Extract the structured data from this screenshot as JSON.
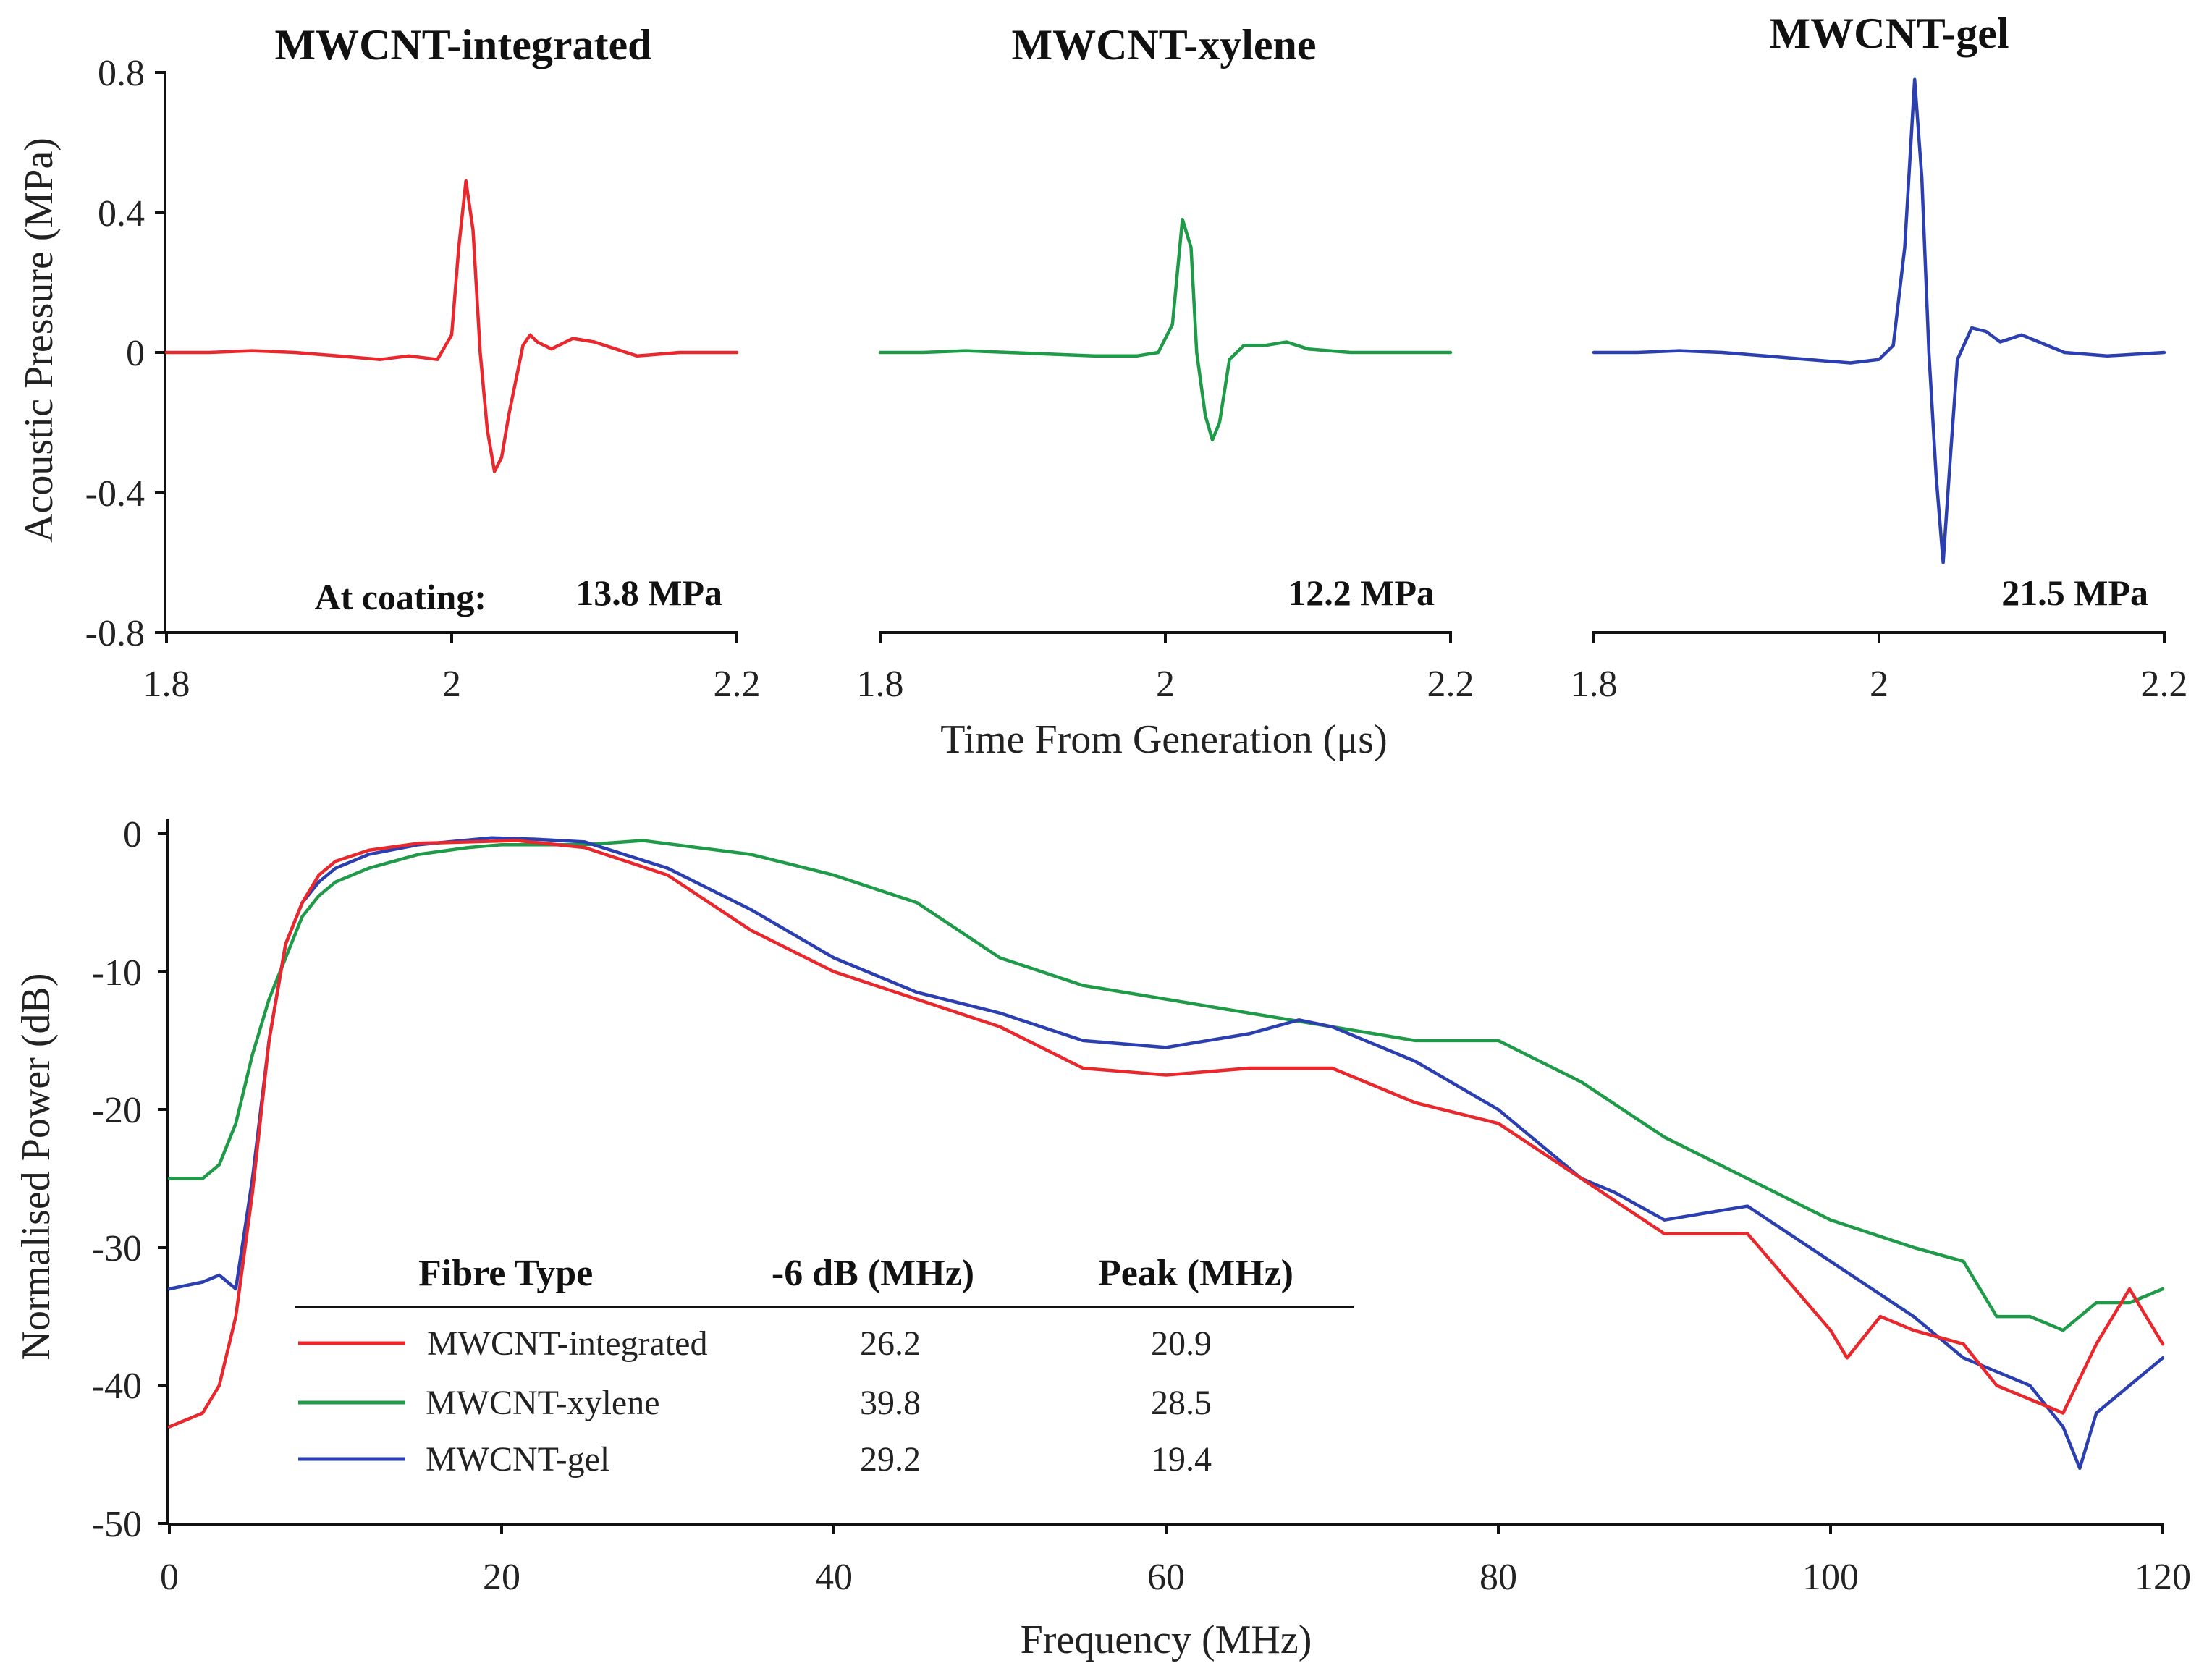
{
  "chart_data": [
    {
      "type": "line",
      "title": "MWCNT-integrated",
      "xlabel": "",
      "ylabel": "Acoustic Pressure (MPa)",
      "xlim": [
        1.8,
        2.2
      ],
      "ylim": [
        -0.8,
        0.8
      ],
      "xticks": [
        "1.8",
        "2",
        "2.2"
      ],
      "yticks": [
        "0.8",
        "0.4",
        "0",
        "-0.4",
        "-0.8"
      ],
      "annotation_label": "At coating:",
      "annotation_value": "13.8 MPa",
      "color": "#e8282c",
      "x": [
        1.8,
        1.83,
        1.86,
        1.89,
        1.92,
        1.95,
        1.97,
        1.99,
        2.0,
        2.005,
        2.01,
        2.015,
        2.02,
        2.025,
        2.03,
        2.035,
        2.04,
        2.05,
        2.055,
        2.06,
        2.07,
        2.085,
        2.1,
        2.13,
        2.16,
        2.2
      ],
      "y": [
        0.0,
        0.0,
        0.005,
        0.0,
        -0.01,
        -0.02,
        -0.01,
        -0.02,
        0.05,
        0.3,
        0.49,
        0.35,
        0.0,
        -0.22,
        -0.34,
        -0.3,
        -0.18,
        0.02,
        0.05,
        0.03,
        0.01,
        0.04,
        0.03,
        -0.01,
        0.0,
        0.0
      ]
    },
    {
      "type": "line",
      "title": "MWCNT-xylene",
      "xlabel": "Time From Generation (μs)",
      "ylabel": "",
      "xlim": [
        1.8,
        2.2
      ],
      "ylim": [
        -0.8,
        0.8
      ],
      "xticks": [
        "1.8",
        "2",
        "2.2"
      ],
      "annotation_label": "",
      "annotation_value": "12.2 MPa",
      "color": "#1e9a48",
      "x": [
        1.8,
        1.83,
        1.86,
        1.89,
        1.92,
        1.95,
        1.98,
        1.995,
        2.005,
        2.012,
        2.018,
        2.022,
        2.028,
        2.033,
        2.038,
        2.045,
        2.055,
        2.07,
        2.085,
        2.1,
        2.13,
        2.16,
        2.2
      ],
      "y": [
        0.0,
        0.0,
        0.005,
        0.0,
        -0.005,
        -0.01,
        -0.01,
        0.0,
        0.08,
        0.38,
        0.3,
        0.0,
        -0.18,
        -0.25,
        -0.2,
        -0.02,
        0.02,
        0.02,
        0.03,
        0.01,
        0.0,
        0.0,
        0.0
      ]
    },
    {
      "type": "line",
      "title": "MWCNT-gel",
      "xlabel": "",
      "ylabel": "",
      "xlim": [
        1.8,
        2.2
      ],
      "ylim": [
        -0.8,
        0.8
      ],
      "xticks": [
        "1.8",
        "2",
        "2.2"
      ],
      "annotation_label": "",
      "annotation_value": "21.5 MPa",
      "color": "#2b3fb0",
      "x": [
        1.8,
        1.83,
        1.86,
        1.89,
        1.92,
        1.95,
        1.98,
        2.0,
        2.01,
        2.018,
        2.025,
        2.03,
        2.035,
        2.04,
        2.045,
        2.05,
        2.055,
        2.065,
        2.075,
        2.085,
        2.1,
        2.13,
        2.16,
        2.2
      ],
      "y": [
        0.0,
        0.0,
        0.005,
        0.0,
        -0.01,
        -0.02,
        -0.03,
        -0.02,
        0.02,
        0.3,
        0.78,
        0.5,
        0.0,
        -0.35,
        -0.6,
        -0.3,
        -0.02,
        0.07,
        0.06,
        0.03,
        0.05,
        0.0,
        -0.01,
        0.0
      ]
    },
    {
      "type": "line",
      "title": "",
      "xlabel": "Frequency (MHz)",
      "ylabel": "Normalised Power (dB)",
      "xlim": [
        0,
        120
      ],
      "ylim": [
        -50,
        0
      ],
      "xticks": [
        "0",
        "20",
        "40",
        "60",
        "80",
        "100",
        "120"
      ],
      "yticks": [
        "0",
        "-10",
        "-20",
        "-30",
        "-40",
        "-50"
      ],
      "legend": {
        "headers": [
          "Fibre Type",
          "-6 dB (MHz)",
          "Peak (MHz)"
        ],
        "rows": [
          {
            "name": "MWCNT-integrated",
            "bw": "26.2",
            "peak": "20.9",
            "color": "#e8282c"
          },
          {
            "name": "MWCNT-xylene",
            "bw": "39.8",
            "peak": "28.5",
            "color": "#1e9a48"
          },
          {
            "name": "MWCNT-gel",
            "bw": "29.2",
            "peak": "19.4",
            "color": "#2b3fb0"
          }
        ]
      },
      "series": [
        {
          "name": "MWCNT-integrated",
          "color": "#e8282c",
          "x": [
            0,
            2,
            3,
            4,
            5,
            6,
            7,
            8,
            9,
            10,
            12,
            15,
            18,
            20.9,
            25,
            30,
            35,
            40,
            45,
            50,
            55,
            60,
            65,
            70,
            75,
            80,
            85,
            90,
            95,
            100,
            101,
            103,
            105,
            108,
            110,
            112,
            114,
            116,
            118,
            120
          ],
          "y": [
            -43,
            -42,
            -40,
            -35,
            -26,
            -15,
            -8,
            -5,
            -3,
            -2,
            -1.2,
            -0.7,
            -0.6,
            -0.5,
            -1,
            -3,
            -7,
            -10,
            -12,
            -14,
            -17,
            -17.5,
            -17,
            -17,
            -19.5,
            -21,
            -25,
            -29,
            -29,
            -36,
            -38,
            -35,
            -36,
            -37,
            -40,
            -41,
            -42,
            -37,
            -33,
            -37
          ]
        },
        {
          "name": "MWCNT-xylene",
          "color": "#1e9a48",
          "x": [
            0,
            2,
            3,
            4,
            5,
            6,
            7,
            8,
            9,
            10,
            12,
            15,
            18,
            20,
            25,
            28.5,
            35,
            40,
            45,
            50,
            55,
            60,
            65,
            70,
            75,
            80,
            85,
            90,
            95,
            100,
            105,
            108,
            110,
            112,
            114,
            116,
            118,
            120
          ],
          "y": [
            -25,
            -25,
            -24,
            -21,
            -16,
            -12,
            -9,
            -6,
            -4.5,
            -3.5,
            -2.5,
            -1.5,
            -1,
            -0.8,
            -0.8,
            -0.5,
            -1.5,
            -3,
            -5,
            -9,
            -11,
            -12,
            -13,
            -14,
            -15,
            -15,
            -18,
            -22,
            -25,
            -28,
            -30,
            -31,
            -35,
            -35,
            -36,
            -34,
            -34,
            -33
          ]
        },
        {
          "name": "MWCNT-gel",
          "color": "#2b3fb0",
          "x": [
            0,
            2,
            3,
            4,
            5,
            6,
            7,
            8,
            9,
            10,
            12,
            15,
            19.4,
            22,
            25,
            30,
            35,
            40,
            45,
            50,
            55,
            60,
            65,
            68,
            70,
            75,
            80,
            85,
            87,
            90,
            95,
            100,
            105,
            108,
            110,
            112,
            114,
            115,
            116,
            118,
            120
          ],
          "y": [
            -33,
            -32.5,
            -32,
            -33,
            -25,
            -15,
            -8,
            -5,
            -3.5,
            -2.5,
            -1.5,
            -0.8,
            -0.3,
            -0.4,
            -0.6,
            -2.5,
            -5.5,
            -9,
            -11.5,
            -13,
            -15,
            -15.5,
            -14.5,
            -13.5,
            -14,
            -16.5,
            -20,
            -25,
            -26,
            -28,
            -27,
            -31,
            -35,
            -38,
            -39,
            -40,
            -43,
            -46,
            -42,
            -40,
            -38
          ]
        }
      ]
    }
  ]
}
